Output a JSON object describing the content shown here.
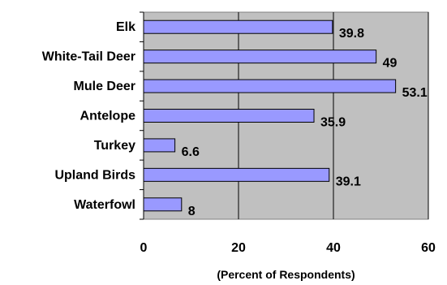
{
  "chart_data": {
    "type": "bar",
    "orientation": "horizontal",
    "categories": [
      "Elk",
      "White-Tail Deer",
      "Mule Deer",
      "Antelope",
      "Turkey",
      "Upland Birds",
      "Waterfowl"
    ],
    "values": [
      39.8,
      49,
      53.1,
      35.9,
      6.6,
      39.1,
      8
    ],
    "value_labels": [
      "39.8",
      "49",
      "53.1",
      "35.9",
      "6.6",
      "39.1",
      "8"
    ],
    "xlabel": "(Percent of Respondents)",
    "xlim": [
      0,
      60
    ],
    "x_ticks": [
      0,
      20,
      40,
      60
    ],
    "x_tick_labels": [
      "0",
      "20",
      "40",
      "60"
    ],
    "grid": true,
    "legend": "none",
    "colors": {
      "bar_fill": "#9999ff",
      "bar_stroke": "#000000",
      "plot_background": "#c0c0c0"
    }
  }
}
